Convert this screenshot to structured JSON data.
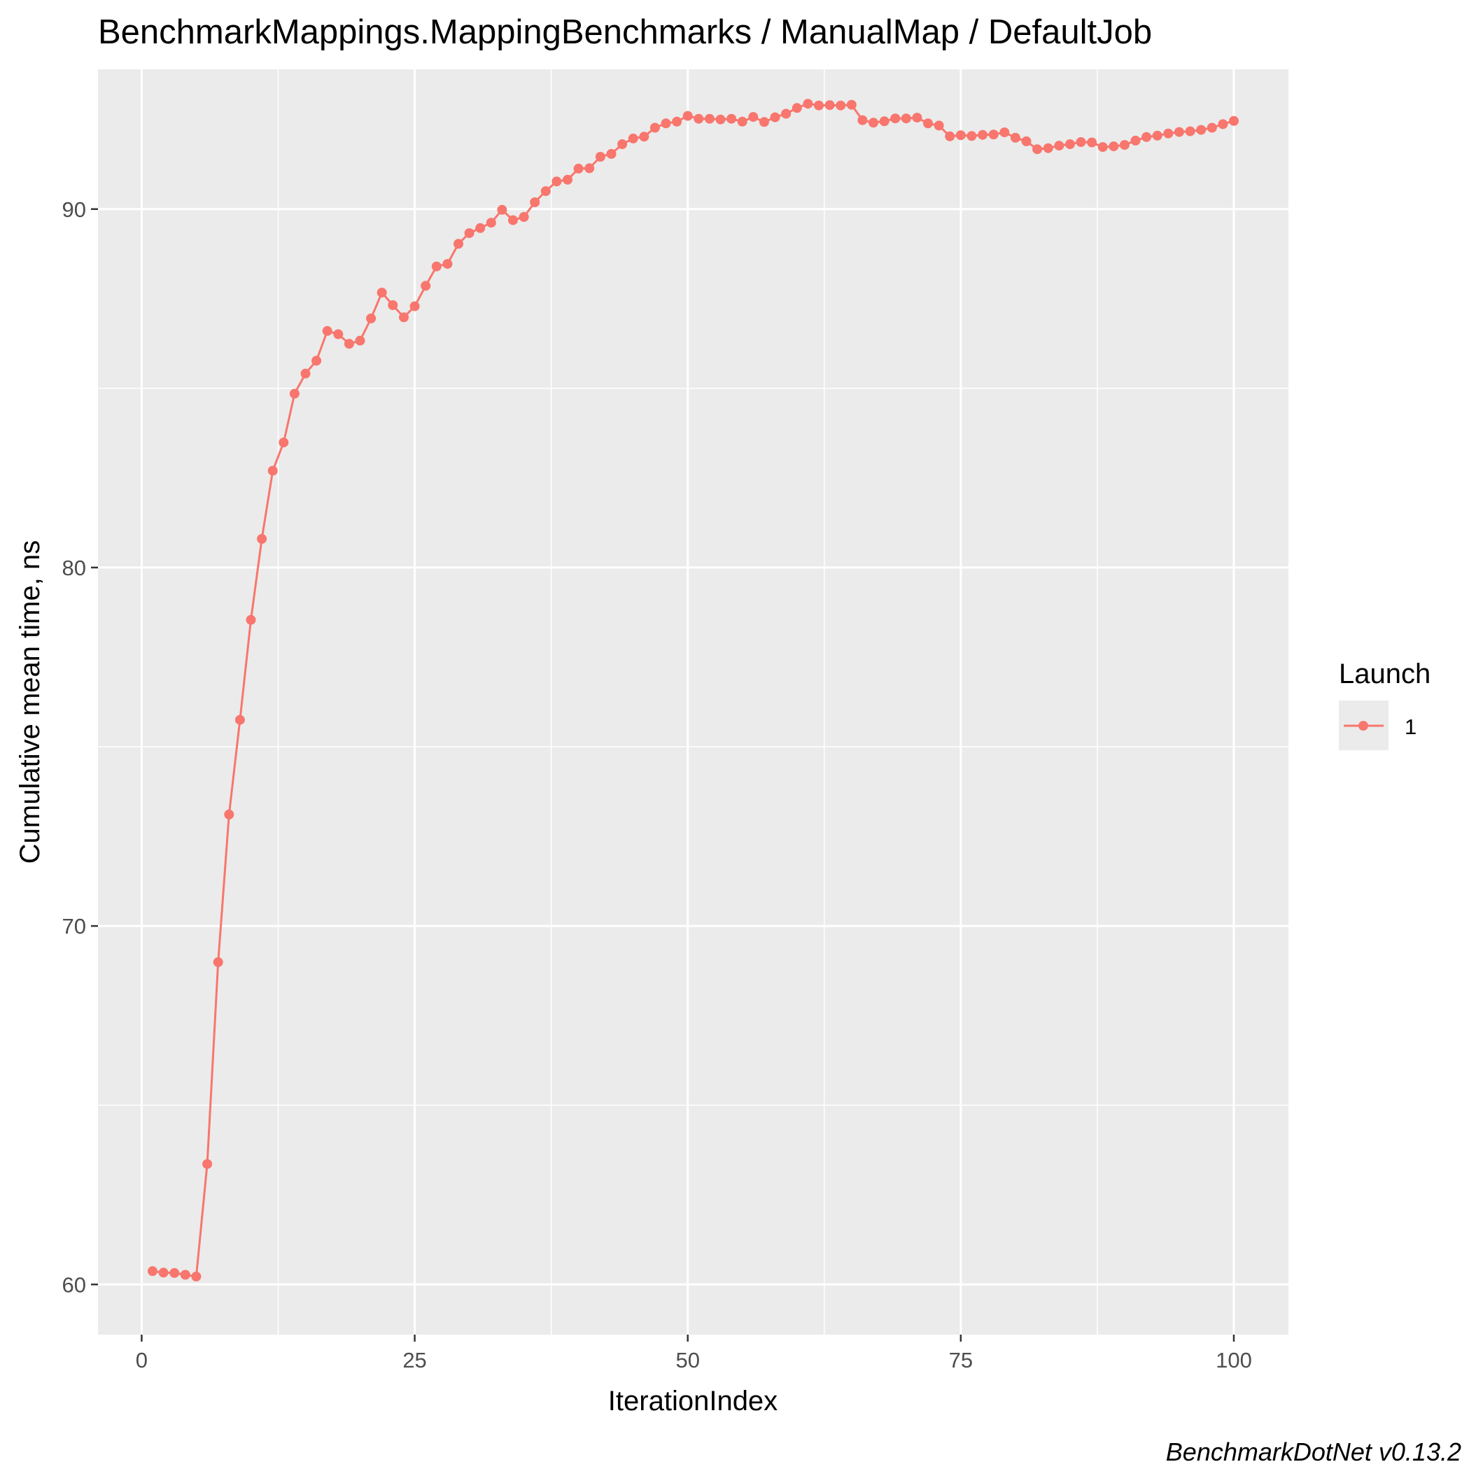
{
  "chart_data": {
    "type": "line",
    "title": "BenchmarkMappings.MappingBenchmarks / ManualMap / DefaultJob",
    "xlabel": "IterationIndex",
    "ylabel": "Cumulative mean time, ns",
    "caption": "BenchmarkDotNet v0.13.2",
    "xlim": [
      -4,
      105
    ],
    "ylim": [
      58.6,
      93.9
    ],
    "x_ticks": [
      0,
      25,
      50,
      75,
      100
    ],
    "x_tick_labels": [
      "0",
      "25",
      "50",
      "75",
      "100"
    ],
    "y_ticks": [
      60,
      70,
      80,
      90
    ],
    "y_tick_labels": [
      "60",
      "70",
      "80",
      "90"
    ],
    "grid": true,
    "legend": {
      "title": "Launch",
      "position": "right"
    },
    "series": [
      {
        "name": "1",
        "color": "#F8766D",
        "x": [
          1,
          2,
          3,
          4,
          5,
          6,
          7,
          8,
          9,
          10,
          11,
          12,
          13,
          14,
          15,
          16,
          17,
          18,
          19,
          20,
          21,
          22,
          23,
          24,
          25,
          26,
          27,
          28,
          29,
          30,
          31,
          32,
          33,
          34,
          35,
          36,
          37,
          38,
          39,
          40,
          41,
          42,
          43,
          44,
          45,
          46,
          47,
          48,
          49,
          50,
          51,
          52,
          53,
          54,
          55,
          56,
          57,
          58,
          59,
          60,
          61,
          62,
          63,
          64,
          65,
          66,
          67,
          68,
          69,
          70,
          71,
          72,
          73,
          74,
          75,
          76,
          77,
          78,
          79,
          80,
          81,
          82,
          83,
          84,
          85,
          86,
          87,
          88,
          89,
          90,
          91,
          92,
          93,
          94,
          95,
          96,
          97,
          98,
          99,
          100
        ],
        "values": [
          60.37,
          60.33,
          60.32,
          60.27,
          60.22,
          63.36,
          68.99,
          73.11,
          75.75,
          78.54,
          80.8,
          82.7,
          83.49,
          84.85,
          85.41,
          85.77,
          86.6,
          86.51,
          86.24,
          86.33,
          86.95,
          87.67,
          87.32,
          86.98,
          87.29,
          87.86,
          88.4,
          88.47,
          89.03,
          89.33,
          89.47,
          89.62,
          89.98,
          89.69,
          89.78,
          90.19,
          90.5,
          90.77,
          90.82,
          91.13,
          91.14,
          91.46,
          91.54,
          91.81,
          91.97,
          92.02,
          92.27,
          92.39,
          92.44,
          92.6,
          92.52,
          92.52,
          92.5,
          92.52,
          92.44,
          92.57,
          92.43,
          92.56,
          92.66,
          92.82,
          92.94,
          92.89,
          92.9,
          92.89,
          92.91,
          92.48,
          92.41,
          92.45,
          92.53,
          92.53,
          92.55,
          92.39,
          92.33,
          92.03,
          92.06,
          92.04,
          92.07,
          92.08,
          92.14,
          91.99,
          91.89,
          91.67,
          91.7,
          91.77,
          91.81,
          91.87,
          91.86,
          91.73,
          91.75,
          91.79,
          91.91,
          92.01,
          92.05,
          92.11,
          92.15,
          92.17,
          92.21,
          92.27,
          92.37,
          92.46
        ]
      }
    ]
  }
}
